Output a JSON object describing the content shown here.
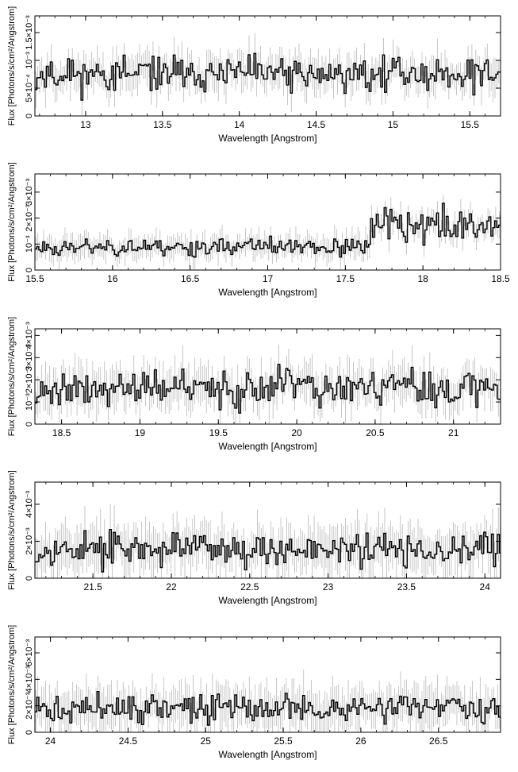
{
  "figure": {
    "background": "#ffffff",
    "data_color": "#000000",
    "error_color": "#b8b8b8"
  },
  "chart_data": [
    {
      "type": "line",
      "style": "histogram-step-with-error-bars",
      "xlabel": "Wavelength [Angstrom]",
      "ylabel": "Flux [Photons/s/cm²/Angstrom]",
      "xlim": [
        12.67,
        15.7
      ],
      "ylim": [
        0,
        0.0018
      ],
      "xticks": [
        13,
        13.5,
        14,
        14.5,
        15,
        15.5
      ],
      "xtick_labels": [
        "13",
        "13.5",
        "14",
        "14.5",
        "15",
        "15.5"
      ],
      "yticks": [
        0,
        0.0005,
        0.001,
        0.0015
      ],
      "ytick_labels": [
        "0",
        "5×10⁻⁴",
        "10⁻³",
        "1.5×10⁻³"
      ],
      "bin_width": 0.0125,
      "flux_level": 0.00075,
      "flux_scatter": 0.0003,
      "error_level": 0.00028,
      "seed": 11,
      "grid": false
    },
    {
      "type": "line",
      "style": "histogram-step-with-error-bars",
      "xlabel": "Wavelength [Angstrom]",
      "ylabel": "Flux [Photons/s/cm²/Angstrom]",
      "xlim": [
        15.5,
        18.5
      ],
      "ylim": [
        0,
        0.0037
      ],
      "xticks": [
        15.5,
        16,
        16.5,
        17,
        17.5,
        18,
        18.5
      ],
      "xtick_labels": [
        "15.5",
        "16",
        "16.5",
        "17",
        "17.5",
        "18",
        "18.5"
      ],
      "yticks": [
        0,
        0.001,
        0.002,
        0.003
      ],
      "ytick_labels": [
        "0",
        "10⁻³",
        "2×10⁻³",
        "3×10⁻³"
      ],
      "bin_width": 0.0125,
      "flux_level": 0.0009,
      "flux_level_high": 0.0017,
      "step_at": 17.65,
      "flux_scatter": 0.00035,
      "error_level": 0.0004,
      "seed": 23,
      "grid": false
    },
    {
      "type": "line",
      "style": "histogram-step-with-error-bars",
      "xlabel": "Wavelength [Angstrom]",
      "ylabel": "Flux [Photons/s/cm²/Angstrom]",
      "xlim": [
        18.33,
        21.3
      ],
      "ylim": [
        0,
        0.0043
      ],
      "xticks": [
        18.5,
        19,
        19.5,
        20,
        20.5,
        21
      ],
      "xtick_labels": [
        "18.5",
        "19",
        "19.5",
        "20",
        "20.5",
        "21"
      ],
      "yticks": [
        0,
        0.001,
        0.002,
        0.003,
        0.004
      ],
      "ytick_labels": [
        "0",
        "10⁻³",
        "2×10⁻³",
        "3×10⁻³",
        "4×10⁻³"
      ],
      "bin_width": 0.0125,
      "flux_level": 0.0016,
      "flux_scatter": 0.0008,
      "error_level": 0.0008,
      "seed": 37,
      "grid": false
    },
    {
      "type": "line",
      "style": "histogram-step-with-error-bars",
      "xlabel": "Wavelength [Angstrom]",
      "ylabel": "Flux [Photons/s/cm²/Angstrom]",
      "xlim": [
        21.13,
        24.1
      ],
      "ylim": [
        0,
        0.0052
      ],
      "xticks": [
        21.5,
        22,
        22.5,
        23,
        23.5,
        24
      ],
      "xtick_labels": [
        "21.5",
        "22",
        "22.5",
        "23",
        "23.5",
        "24"
      ],
      "yticks": [
        0,
        0.002,
        0.004
      ],
      "ytick_labels": [
        "0",
        "2×10⁻³",
        "4×10⁻³"
      ],
      "bin_width": 0.0125,
      "flux_level": 0.0016,
      "flux_scatter": 0.0009,
      "error_level": 0.0011,
      "seed": 53,
      "grid": false
    },
    {
      "type": "line",
      "style": "histogram-step-with-error-bars",
      "xlabel": "Wavelength [Angstrom]",
      "ylabel": "Flux [Photons/s/cm²/Angstrom]",
      "xlim": [
        23.9,
        26.9
      ],
      "ylim": [
        0,
        0.0072
      ],
      "xticks": [
        24,
        24.5,
        25,
        25.5,
        26,
        26.5
      ],
      "xtick_labels": [
        "24",
        "24.5",
        "25",
        "25.5",
        "26",
        "26.5"
      ],
      "yticks": [
        0,
        0.002,
        0.004,
        0.006
      ],
      "ytick_labels": [
        "0",
        "2×10⁻³",
        "4×10⁻³",
        "6×10⁻³"
      ],
      "bin_width": 0.0125,
      "flux_level": 0.0018,
      "flux_scatter": 0.001,
      "error_level": 0.0014,
      "seed": 71,
      "grid": false
    }
  ]
}
